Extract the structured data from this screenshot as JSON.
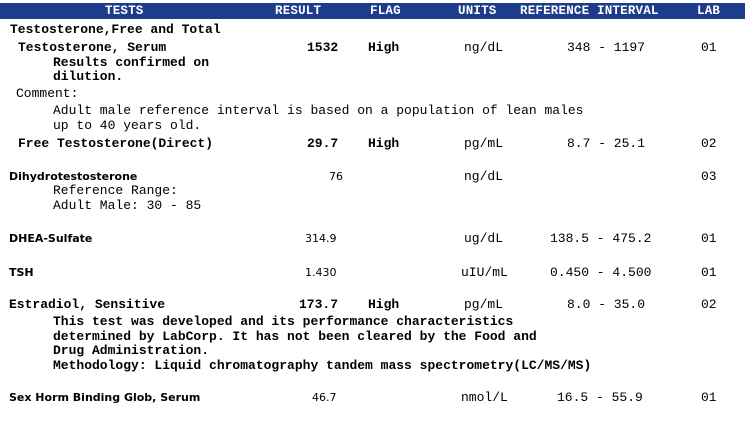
{
  "header": {
    "tests": "TESTS",
    "result": "RESULT",
    "flag": "FLAG",
    "units": "UNITS",
    "reference": "REFERENCE INTERVAL",
    "lab": "LAB"
  },
  "panel_title": "Testosterone,Free and Total",
  "rows": {
    "total_t": {
      "name": "Testosterone, Serum",
      "result": "1532",
      "flag": "High",
      "units": "ng/dL",
      "range": "348 - 1197",
      "lab": "01",
      "note_1": "Results confirmed on",
      "note_2": "dilution.",
      "comment_label": "Comment:",
      "comment_1": "Adult male reference interval is based on a population of lean males",
      "comment_2": "up to 40 years old."
    },
    "free_t": {
      "name": "Free Testosterone(Direct)",
      "result": "29.7",
      "flag": "High",
      "units": "pg/mL",
      "range": "8.7 - 25.1",
      "lab": "02"
    },
    "dht": {
      "name": "Dihydrotestosterone",
      "result": "76",
      "units": "ng/dL",
      "lab": "03",
      "ref_label": "Reference Range:",
      "ref_value": "Adult Male: 30 - 85"
    },
    "dhea": {
      "name": "DHEA-Sulfate",
      "result": "314.9",
      "units": "ug/dL",
      "range": "138.5 - 475.2",
      "lab": "01"
    },
    "tsh": {
      "name": "TSH",
      "result": "1.430",
      "units": "uIU/mL",
      "range": "0.450 - 4.500",
      "lab": "01"
    },
    "estradiol": {
      "name": "Estradiol, Sensitive",
      "result": "173.7",
      "flag": "High",
      "units": "pg/mL",
      "range": "8.0 - 35.0",
      "lab": "02",
      "note_1": "This test was developed and its performance characteristics",
      "note_2": "determined by LabCorp. It has not been cleared by the Food and",
      "note_3": "Drug Administration.",
      "note_4": "Methodology: Liquid chromatography tandem mass spectrometry(LC/MS/MS)"
    },
    "shbg": {
      "name": "Sex Horm Binding Glob, Serum",
      "result": "46.7",
      "units": "nmol/L",
      "range": "16.5 - 55.9",
      "lab": "01"
    }
  }
}
